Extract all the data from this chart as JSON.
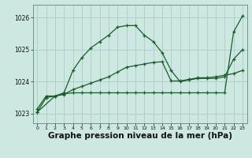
{
  "bg_color": "#cce8e0",
  "grid_color": "#aacccc",
  "line_color": "#1a5c2a",
  "xlabel": "Graphe pression niveau de la mer (hPa)",
  "xlabel_fontsize": 7.5,
  "ylim": [
    1022.7,
    1026.4
  ],
  "xlim": [
    -0.5,
    23.5
  ],
  "yticks": [
    1023,
    1024,
    1025,
    1026
  ],
  "xticks": [
    0,
    1,
    2,
    3,
    4,
    5,
    6,
    7,
    8,
    9,
    10,
    11,
    12,
    13,
    14,
    15,
    16,
    17,
    18,
    19,
    20,
    21,
    22,
    23
  ],
  "line1_x": [
    0,
    1,
    2,
    3,
    4,
    5,
    6,
    7,
    8,
    9,
    10,
    11,
    12,
    13,
    14,
    15,
    16,
    17,
    18,
    19,
    20,
    21,
    22,
    23
  ],
  "line1": [
    1023.05,
    1023.5,
    1023.55,
    1023.65,
    1024.35,
    1024.75,
    1025.05,
    1025.25,
    1025.45,
    1025.7,
    1025.75,
    1025.75,
    1025.45,
    1025.25,
    1024.9,
    1024.35,
    1024.0,
    1024.05,
    1024.1,
    1024.1,
    1024.1,
    1024.15,
    1024.7,
    1025.0
  ],
  "line2_x": [
    0,
    1,
    2,
    3,
    4,
    5,
    6,
    7,
    8,
    9,
    10,
    11,
    12,
    13,
    14,
    15,
    16,
    17,
    18,
    19,
    20,
    21,
    22,
    23
  ],
  "line2": [
    1023.15,
    1023.55,
    1023.55,
    1023.6,
    1023.75,
    1023.85,
    1023.95,
    1024.05,
    1024.15,
    1024.3,
    1024.45,
    1024.5,
    1024.55,
    1024.6,
    1024.62,
    1024.02,
    1024.02,
    1024.07,
    1024.12,
    1024.12,
    1024.15,
    1024.2,
    1024.25,
    1024.35
  ],
  "line3_x": [
    0,
    2,
    3,
    4,
    5,
    6,
    7,
    8,
    9,
    10,
    11,
    12,
    13,
    14,
    15,
    16,
    17,
    18,
    19,
    20,
    21,
    22,
    23
  ],
  "line3": [
    1023.05,
    1023.55,
    1023.62,
    1023.65,
    1023.65,
    1023.65,
    1023.65,
    1023.65,
    1023.65,
    1023.65,
    1023.65,
    1023.65,
    1023.65,
    1023.65,
    1023.65,
    1023.65,
    1023.65,
    1023.65,
    1023.65,
    1023.65,
    1023.65,
    1025.55,
    1026.05
  ]
}
